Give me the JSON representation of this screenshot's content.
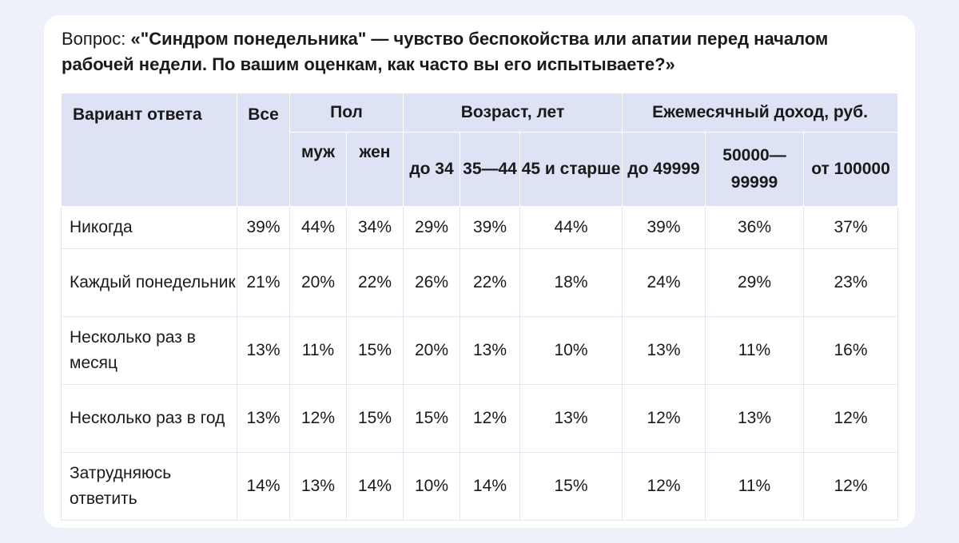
{
  "question": {
    "prefix": "Вопрос: ",
    "text": "«\"Синдром понедельника\" — чувство беспокойства или апатии перед началом рабочей недели. По вашим оценкам, как часто вы его испытываете?»"
  },
  "table": {
    "header": {
      "answer": "Вариант ответа",
      "all": "Все",
      "groups": {
        "gender": "Пол",
        "age": "Возраст, лет",
        "income": "Ежемесячный доход, руб."
      },
      "sub": {
        "male": "муж",
        "female": "жен",
        "age_under_34": "до 34",
        "age_35_44": "35—44",
        "age_45_plus": "45 и старше",
        "inc_under_49999": "до 49999",
        "inc_50000_99999": "50000—99999",
        "inc_100000_plus": "от 100000"
      }
    },
    "rows": [
      {
        "answer": "Никогда",
        "all": "39%",
        "male": "44%",
        "female": "34%",
        "age1": "29%",
        "age2": "39%",
        "age3": "44%",
        "inc1": "39%",
        "inc2": "36%",
        "inc3": "37%"
      },
      {
        "answer": "Каждый понедельник",
        "all": "21%",
        "male": "20%",
        "female": "22%",
        "age1": "26%",
        "age2": "22%",
        "age3": "18%",
        "inc1": "24%",
        "inc2": "29%",
        "inc3": "23%"
      },
      {
        "answer": "Несколько раз в месяц",
        "all": "13%",
        "male": "11%",
        "female": "15%",
        "age1": "20%",
        "age2": "13%",
        "age3": "10%",
        "inc1": "13%",
        "inc2": "11%",
        "inc3": "16%"
      },
      {
        "answer": "Несколько раз в год",
        "all": "13%",
        "male": "12%",
        "female": "15%",
        "age1": "15%",
        "age2": "12%",
        "age3": "13%",
        "inc1": "12%",
        "inc2": "13%",
        "inc3": "12%"
      },
      {
        "answer": "Затрудняюсь ответить",
        "all": "14%",
        "male": "13%",
        "female": "14%",
        "age1": "10%",
        "age2": "14%",
        "age3": "15%",
        "inc1": "12%",
        "inc2": "11%",
        "inc3": "12%"
      }
    ]
  },
  "colors": {
    "page_background": "#eef1f9",
    "card_background": "#ffffff",
    "header_background": "#dde3f4",
    "text": "#1a1a1a",
    "cell_border": "#e2e6f0"
  }
}
